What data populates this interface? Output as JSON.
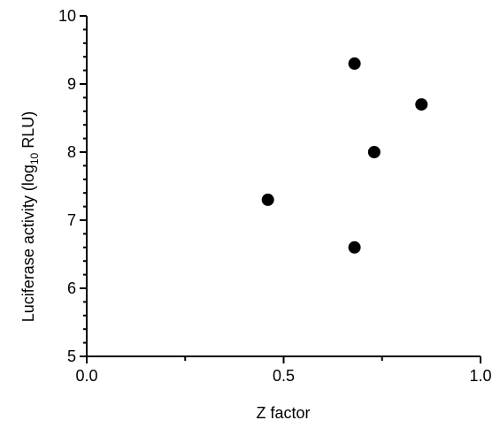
{
  "chart_data": {
    "type": "scatter",
    "title": "",
    "xlabel": "Z factor",
    "ylabel_parts": {
      "pre": "Luciferase  activity (log",
      "sub": "10",
      "post": " RLU)"
    },
    "xlim": [
      0.0,
      1.0
    ],
    "ylim": [
      5,
      10
    ],
    "x_ticks": [
      0.0,
      0.5,
      1.0
    ],
    "x_tick_labels": [
      "0.0",
      "0.5",
      "1.0"
    ],
    "y_ticks": [
      5,
      6,
      7,
      8,
      9,
      10
    ],
    "y_tick_labels": [
      "5",
      "6",
      "7",
      "8",
      "9",
      "10"
    ],
    "grid": false,
    "legend": "none",
    "marker_color": "#000000",
    "points": [
      {
        "x": 0.46,
        "y": 7.3
      },
      {
        "x": 0.68,
        "y": 9.3
      },
      {
        "x": 0.68,
        "y": 6.6
      },
      {
        "x": 0.73,
        "y": 8.0
      },
      {
        "x": 0.85,
        "y": 8.7
      }
    ]
  }
}
